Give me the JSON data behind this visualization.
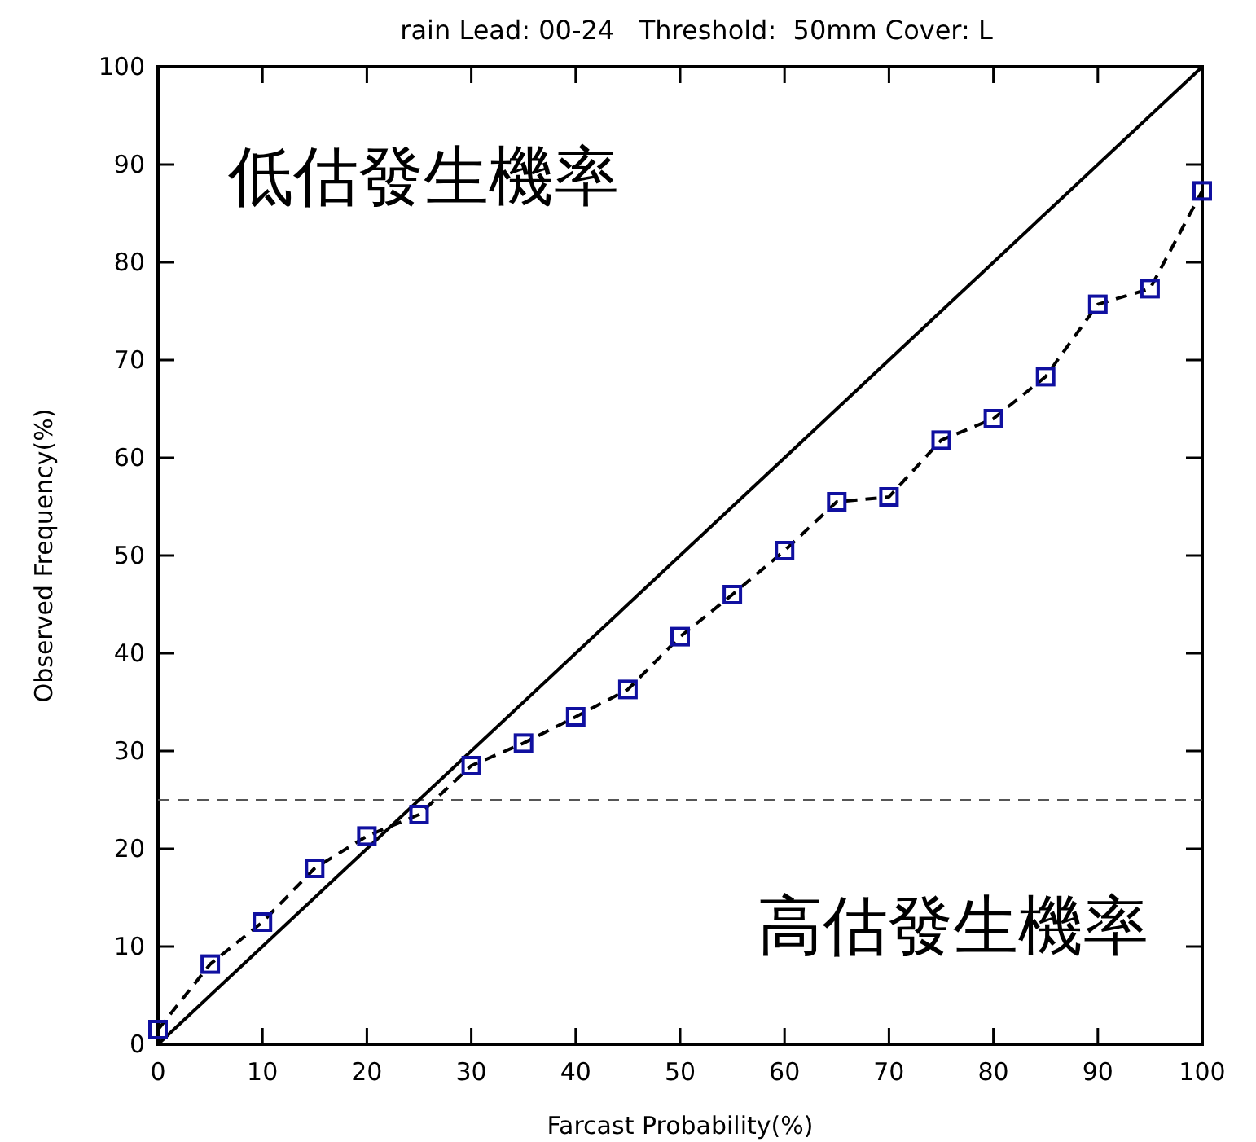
{
  "chart_data": {
    "type": "line",
    "title": "rain Lead: 00-24   Threshold:  50mm Cover: L",
    "xlabel": "Farcast Probability(%)",
    "ylabel": "Observed Frequency(%)",
    "annotations": [
      "低估發生機率",
      "高估發生機率"
    ],
    "x": [
      0,
      5,
      10,
      15,
      20,
      25,
      30,
      35,
      40,
      45,
      50,
      55,
      60,
      65,
      70,
      75,
      80,
      85,
      90,
      95,
      100
    ],
    "series": [
      {
        "color": "#000000",
        "x": [
          0,
          100
        ],
        "values": [
          0,
          100
        ],
        "marker": "none",
        "line_style": "solid"
      },
      {
        "color": "#1010a0",
        "values": [
          1.5,
          8.2,
          12.5,
          18,
          21.3,
          23.5,
          28.5,
          30.8,
          33.5,
          36.3,
          41.7,
          46,
          50.5,
          55.5,
          56,
          61.8,
          64,
          68.3,
          75.7,
          77.3,
          87.3
        ],
        "marker": "square",
        "line_style": "dashed"
      }
    ],
    "ref_lines": [
      {
        "axis": "y",
        "value": 25,
        "color": "#555555",
        "line_style": "dashed"
      }
    ],
    "xlim": [
      0,
      100
    ],
    "ylim": [
      0,
      100
    ],
    "xticks": [
      0,
      10,
      20,
      30,
      40,
      50,
      60,
      70,
      80,
      90,
      100
    ],
    "yticks": [
      0,
      10,
      20,
      30,
      40,
      50,
      60,
      70,
      80,
      90,
      100
    ],
    "grid": false
  }
}
